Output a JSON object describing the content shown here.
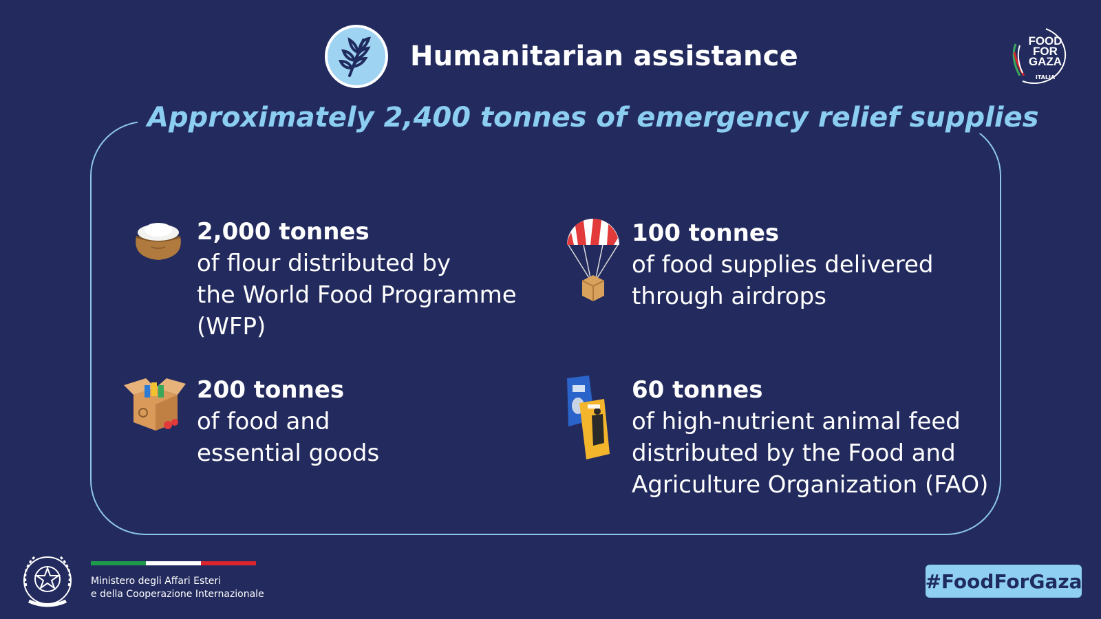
{
  "header": {
    "icon": "wheat-icon",
    "title": "Humanitarian assistance"
  },
  "logo": {
    "line1": "FOOD",
    "line2": "FOR",
    "line3": "GAZA",
    "small": "ITALIA"
  },
  "subtitle": "Approximately 2,400 tonnes of emergency relief supplies",
  "items": [
    {
      "icon": "flour-sack-icon",
      "amount": "2,000 tonnes",
      "lines": [
        "of flour distributed by",
        "the World Food Programme",
        "(WFP)"
      ]
    },
    {
      "icon": "parachute-airdrop-icon",
      "amount": "100 tonnes",
      "lines": [
        "of food supplies delivered",
        "through airdrops"
      ]
    },
    {
      "icon": "food-box-icon",
      "amount": "200 tonnes",
      "lines": [
        "of food and",
        "essential goods"
      ]
    },
    {
      "icon": "animal-feed-bags-icon",
      "amount": "60 tonnes",
      "lines": [
        "of high-nutrient animal feed",
        "distributed by the Food and",
        "Agriculture Organization (FAO)"
      ]
    }
  ],
  "footer": {
    "emblem": "italian-republic-emblem-icon",
    "ministry_line1": "Ministero degli Affari Esteri",
    "ministry_line2": "e della Cooperazione Internazionale",
    "hashtag": "#FoodForGaza"
  },
  "colors": {
    "background": "#232b5e",
    "accent": "#8ccdf2",
    "flag_green": "#1f9a4a",
    "flag_white": "#ffffff",
    "flag_red": "#d9262e"
  }
}
